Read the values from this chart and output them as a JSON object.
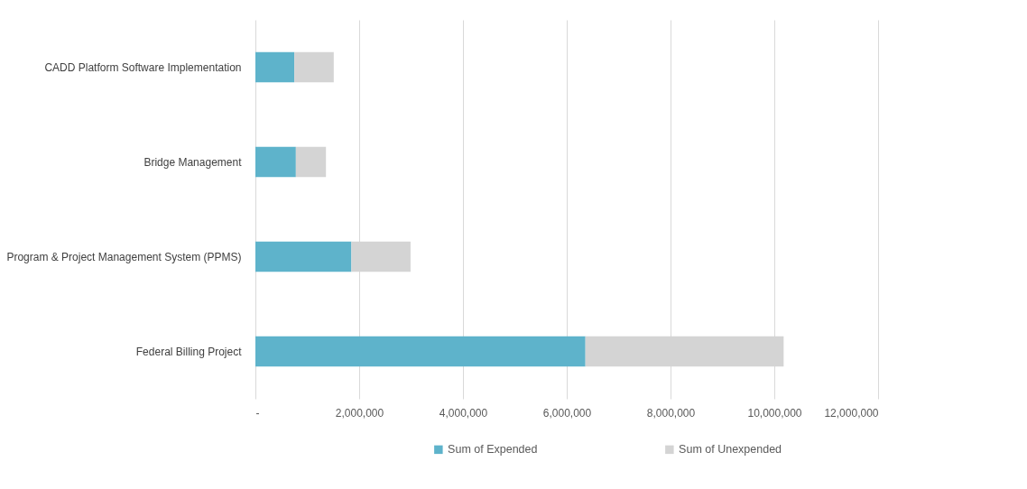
{
  "chart_data": {
    "type": "bar",
    "orientation": "horizontal",
    "stacked": true,
    "categories": [
      "CADD Platform Software Implementation",
      "Bridge Management",
      "Program & Project Management System (PPMS)",
      "Federal Billing Project"
    ],
    "series": [
      {
        "name": "Sum of Expended",
        "color": "#5eb3cb",
        "values": [
          750000,
          780000,
          1850000,
          6360000
        ]
      },
      {
        "name": "Sum of Unexpended",
        "color": "#d4d4d4",
        "values": [
          760000,
          580000,
          1140000,
          3820000
        ]
      }
    ],
    "xlim": [
      0,
      12000000
    ],
    "xticks": [
      {
        "value": 0,
        "label": "-"
      },
      {
        "value": 2000000,
        "label": "2,000,000"
      },
      {
        "value": 4000000,
        "label": "4,000,000"
      },
      {
        "value": 6000000,
        "label": "6,000,000"
      },
      {
        "value": 8000000,
        "label": "8,000,000"
      },
      {
        "value": 10000000,
        "label": "10,000,000"
      },
      {
        "value": 12000000,
        "label": "12,000,000"
      }
    ],
    "grid": "x",
    "legend": "bottom right"
  }
}
